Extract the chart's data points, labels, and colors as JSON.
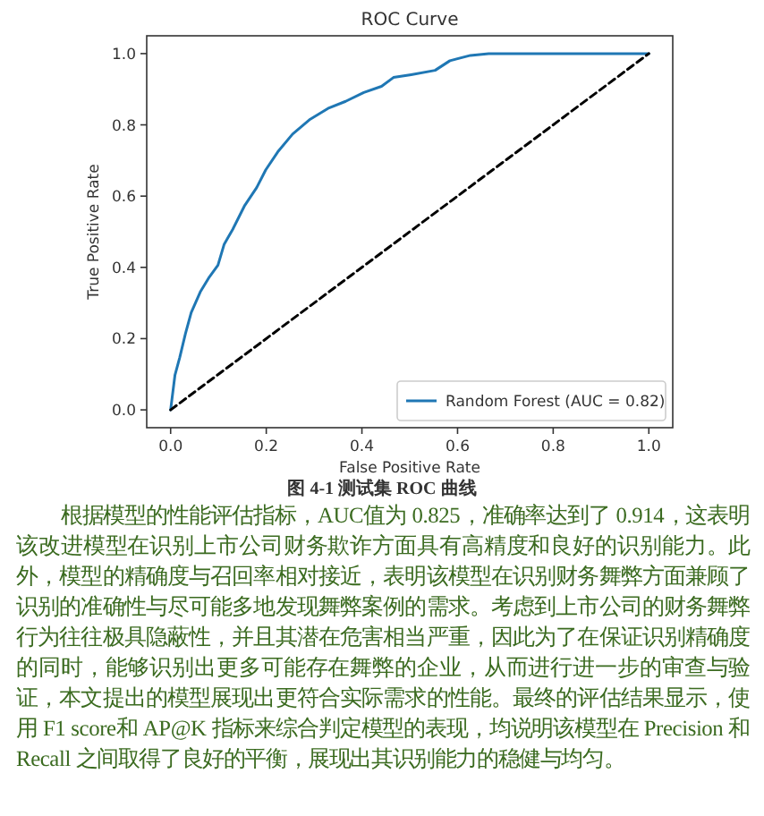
{
  "chart_data": {
    "type": "line",
    "title": "ROC Curve",
    "xlabel": "False Positive Rate",
    "ylabel": "True Positive Rate",
    "xlim": [
      -0.05,
      1.05
    ],
    "ylim": [
      -0.05,
      1.05
    ],
    "xticks": [
      {
        "value": 0,
        "label": "0.0"
      },
      {
        "value": 0.2,
        "label": "0.2"
      },
      {
        "value": 0.4,
        "label": "0.4"
      },
      {
        "value": 0.6,
        "label": "0.6"
      },
      {
        "value": 0.8,
        "label": "0.8"
      },
      {
        "value": 1,
        "label": "1.0"
      }
    ],
    "yticks": [
      {
        "value": 0,
        "label": "0.0"
      },
      {
        "value": 0.2,
        "label": "0.2"
      },
      {
        "value": 0.4,
        "label": "0.4"
      },
      {
        "value": 0.6,
        "label": "0.6"
      },
      {
        "value": 0.8,
        "label": "0.8"
      },
      {
        "value": 1,
        "label": "1.0"
      }
    ],
    "legend": "bottom right",
    "series": [
      {
        "name": "Random Forest (AUC = 0.82)",
        "color": "#1f77b4",
        "line_style": "solid",
        "x": [
          0,
          0.009,
          0.019,
          0.031,
          0.043,
          0.062,
          0.081,
          0.099,
          0.112,
          0.13,
          0.155,
          0.18,
          0.199,
          0.224,
          0.255,
          0.292,
          0.329,
          0.366,
          0.404,
          0.441,
          0.466,
          0.503,
          0.553,
          0.584,
          0.627,
          0.665,
          1.0
        ],
        "values": [
          0,
          0.097,
          0.147,
          0.214,
          0.273,
          0.331,
          0.373,
          0.406,
          0.465,
          0.507,
          0.574,
          0.624,
          0.674,
          0.724,
          0.774,
          0.816,
          0.846,
          0.866,
          0.891,
          0.908,
          0.933,
          0.941,
          0.953,
          0.98,
          0.995,
          1.0,
          1.0
        ]
      },
      {
        "color": "#000000",
        "line_style": "dashed",
        "x": [
          0,
          1
        ],
        "values": [
          0,
          1
        ]
      }
    ],
    "annotations": [
      "图 4-1 测试集 ROC 曲线",
      "根据模型的性能评估指标，AUC值为 0.825，准确率达到了 0.914，这表明该改进模型在识别上市公司财务欺诈方面具有高精度和良好的识别能力。此外，模型的精确度与召回率相对接近，表明该模型在识别财务舞弊方面兼顾了识别的准确性与尽可能多地发现舞弊案例的需求。考虑到上市公司的财务舞弊行为往往极具隐蔽性，并且其潜在危害相当严重，因此为了在保证识别精确度的同时，能够识别出更多可能存在舞弊的企业，从而进行进一步的审查与验证，本文提出的模型展现出更符合实际需求的性能。最终的评估结果显示，使用 F1 score和 AP@K 指标来综合判定模型的表现，均说明该模型在 Precision 和 Recall 之间取得了良好的平衡，展现出其识别能力的稳健与均匀。"
    ]
  }
}
